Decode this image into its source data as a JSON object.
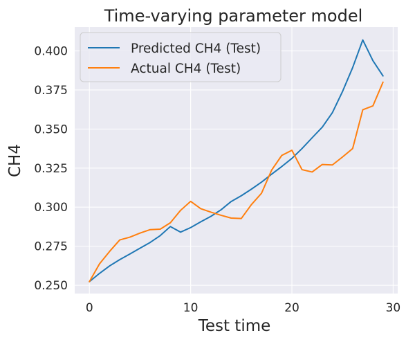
{
  "chart_data": {
    "type": "line",
    "title": "Time-varying parameter model",
    "xlabel": "Test time",
    "ylabel": "CH4",
    "xlim": [
      -1.45,
      30.45
    ],
    "ylim": [
      0.2447,
      0.4153
    ],
    "xticks": [
      0,
      10,
      20,
      30
    ],
    "yticks": [
      0.25,
      0.275,
      0.3,
      0.325,
      0.35,
      0.375,
      0.4
    ],
    "xtick_labels": [
      "0",
      "10",
      "20",
      "30"
    ],
    "ytick_labels": [
      "0.250",
      "0.275",
      "0.300",
      "0.325",
      "0.350",
      "0.375",
      "0.400"
    ],
    "grid": true,
    "legend_position": "upper-left",
    "background": "#eaeaf2",
    "x": [
      0,
      1,
      2,
      3,
      4,
      5,
      6,
      7,
      8,
      9,
      10,
      11,
      12,
      13,
      14,
      15,
      16,
      17,
      18,
      19,
      20,
      21,
      22,
      23,
      24,
      25,
      26,
      27,
      28,
      29
    ],
    "series": [
      {
        "name": "Predicted CH4 (Test)",
        "color": "#1f77b4",
        "values": [
          0.2523,
          0.2576,
          0.2624,
          0.2664,
          0.27,
          0.2737,
          0.2774,
          0.2818,
          0.2876,
          0.284,
          0.2869,
          0.2906,
          0.2941,
          0.2983,
          0.3036,
          0.3073,
          0.3115,
          0.316,
          0.3211,
          0.326,
          0.3312,
          0.3375,
          0.3444,
          0.3512,
          0.3605,
          0.374,
          0.3893,
          0.407,
          0.3938,
          0.384
        ]
      },
      {
        "name": "Actual CH4 (Test)",
        "color": "#ff7f0e",
        "values": [
          0.2523,
          0.2637,
          0.2717,
          0.279,
          0.2808,
          0.2834,
          0.2856,
          0.2859,
          0.29,
          0.2979,
          0.3037,
          0.299,
          0.2968,
          0.2948,
          0.293,
          0.2927,
          0.3016,
          0.3089,
          0.3237,
          0.3331,
          0.3364,
          0.324,
          0.3225,
          0.3273,
          0.327,
          0.3321,
          0.3375,
          0.3623,
          0.3648,
          0.38
        ]
      }
    ]
  }
}
